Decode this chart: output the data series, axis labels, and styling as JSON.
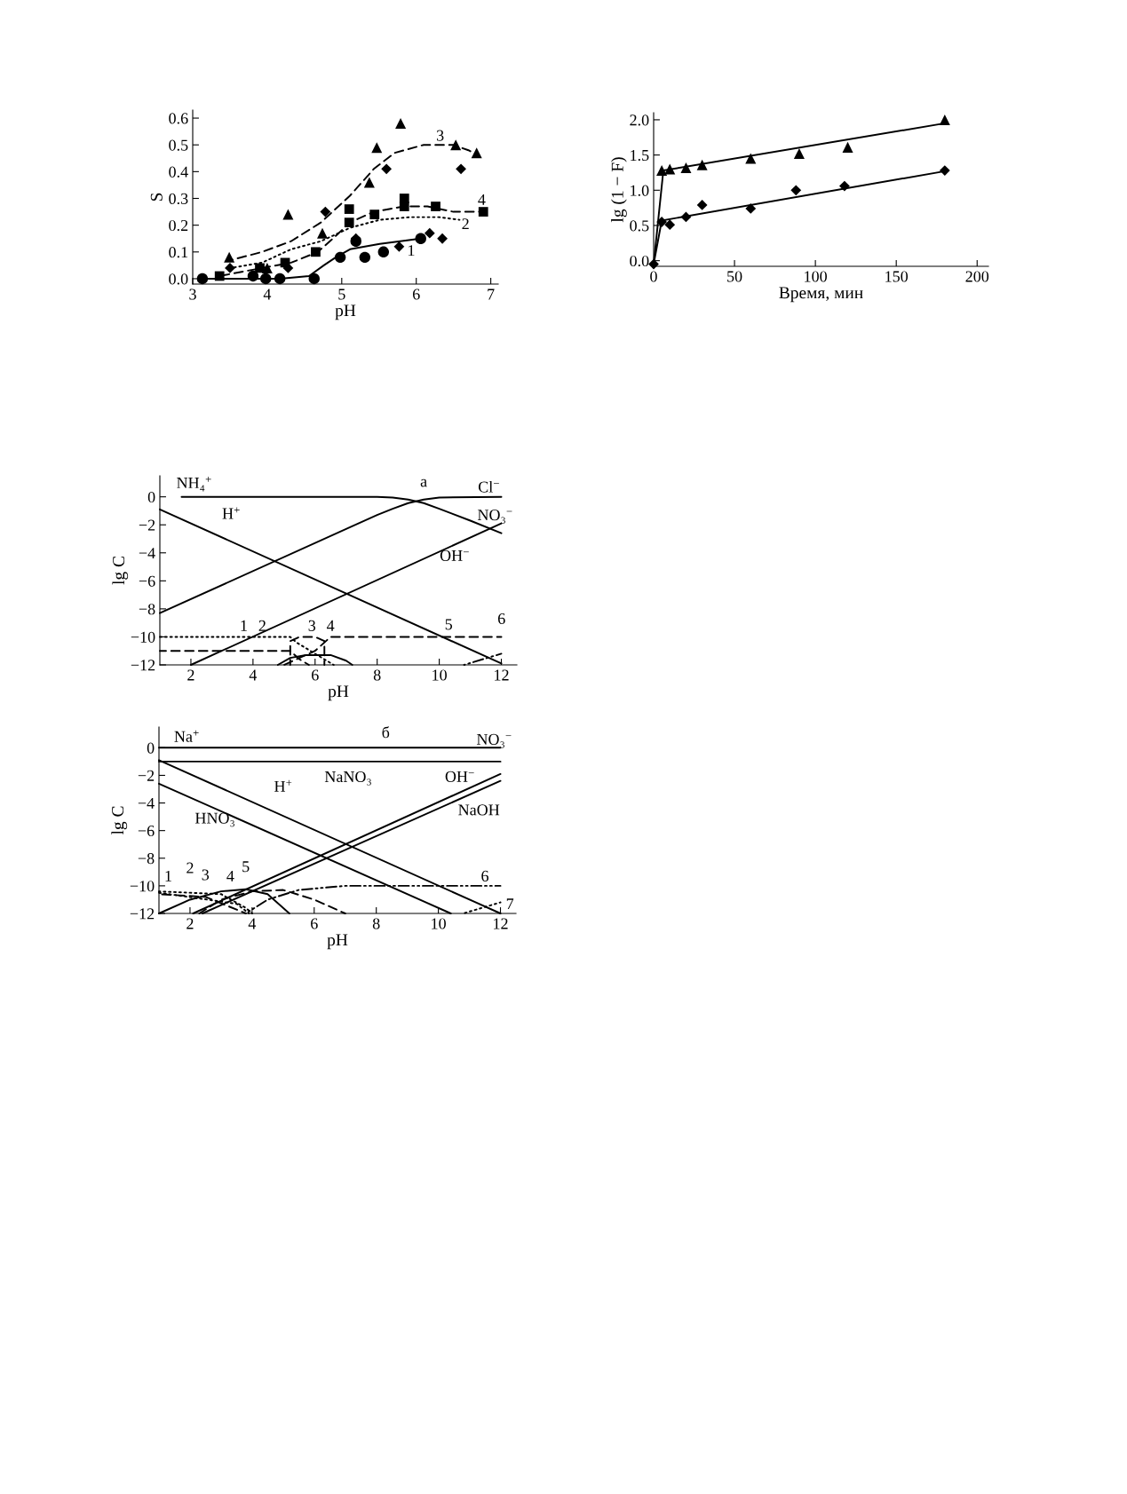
{
  "chart_data": [
    {
      "type": "scatter",
      "xlabel": "pH",
      "ylabel": "S",
      "xlim": [
        3,
        7.1
      ],
      "ylim": [
        -0.02,
        0.63
      ],
      "xticks": [
        3,
        4,
        5,
        6,
        7
      ],
      "yticks": [
        {
          "value": 0,
          "label": "0.0"
        },
        0.1,
        0.2,
        0.3,
        0.4,
        0.5,
        0.6
      ],
      "series": [
        {
          "type": "scatter",
          "marker": "circle",
          "color": "#000000",
          "x": [
            3.13,
            3.81,
            3.98,
            4.17,
            4.63,
            4.98,
            5.19,
            5.31,
            5.56,
            6.06
          ],
          "values": [
            0.0,
            0.01,
            0.0,
            0.0,
            0.0,
            0.08,
            0.14,
            0.08,
            0.1,
            0.15
          ]
        },
        {
          "type": "scatter",
          "marker": "diamond",
          "color": "#000000",
          "x": [
            3.5,
            4.28,
            4.78,
            5.19,
            5.6,
            5.77,
            6.18,
            6.35,
            6.6
          ],
          "values": [
            0.04,
            0.04,
            0.25,
            0.15,
            0.41,
            0.12,
            0.17,
            0.15,
            0.41
          ]
        },
        {
          "type": "scatter",
          "marker": "triangle",
          "color": "#000000",
          "x": [
            3.49,
            4.0,
            4.28,
            4.74,
            5.37,
            5.47,
            5.79,
            6.53,
            6.81
          ],
          "values": [
            0.08,
            0.04,
            0.24,
            0.17,
            0.36,
            0.49,
            0.58,
            0.5,
            0.47
          ]
        },
        {
          "type": "scatter",
          "marker": "square",
          "color": "#000000",
          "x": [
            3.36,
            3.9,
            4.24,
            4.65,
            5.1,
            5.1,
            5.44,
            5.84,
            5.84,
            6.26,
            6.9
          ],
          "values": [
            0.01,
            0.04,
            0.06,
            0.1,
            0.26,
            0.21,
            0.24,
            0.3,
            0.27,
            0.27,
            0.25
          ]
        },
        {
          "type": "line",
          "line_style": "solid",
          "color": "#000000",
          "x": [
            3.13,
            4.17,
            4.56,
            4.76,
            4.92,
            5.11,
            5.51,
            6.06
          ],
          "values": [
            0.0,
            0.0,
            0.01,
            0.05,
            0.08,
            0.11,
            0.13,
            0.15
          ]
        },
        {
          "type": "line",
          "line_style": "dotted",
          "color": "#000000",
          "x": [
            3.51,
            3.93,
            4.32,
            4.72,
            5.11,
            5.51,
            5.91,
            6.31,
            6.58
          ],
          "values": [
            0.04,
            0.06,
            0.11,
            0.14,
            0.19,
            0.22,
            0.23,
            0.23,
            0.22
          ]
        },
        {
          "type": "line",
          "line_style": "dashed",
          "color": "#000000",
          "x": [
            3.52,
            3.93,
            4.32,
            4.72,
            5.11,
            5.43,
            5.71,
            6.1,
            6.5,
            6.7,
            6.84
          ],
          "values": [
            0.07,
            0.1,
            0.14,
            0.21,
            0.31,
            0.41,
            0.47,
            0.5,
            0.5,
            0.48,
            0.46
          ]
        },
        {
          "type": "line",
          "line_style": "dashed",
          "color": "#000000",
          "x": [
            3.36,
            3.93,
            4.32,
            4.68,
            4.92,
            5.11,
            5.43,
            5.83,
            6.15,
            6.5,
            6.9
          ],
          "values": [
            0.01,
            0.04,
            0.06,
            0.1,
            0.16,
            0.21,
            0.25,
            0.27,
            0.27,
            0.25,
            0.25
          ]
        }
      ],
      "annotations": [
        "3",
        "4",
        "2",
        "1"
      ]
    },
    {
      "type": "scatter",
      "xlabel": "Время, мин",
      "ylabel": "lg (1 − F)",
      "xlim": [
        0,
        207
      ],
      "ylim": [
        -0.08,
        2.1
      ],
      "xticks": [
        0,
        50,
        100,
        150,
        200
      ],
      "yticks": [
        {
          "value": 0,
          "label": "0.0"
        },
        0.5,
        {
          "value": 1,
          "label": "1.0"
        },
        1.5,
        {
          "value": 2,
          "label": "2.0"
        }
      ],
      "series": [
        {
          "type": "scatter",
          "marker": "triangle",
          "color": "#000000",
          "x": [
            5,
            10,
            20,
            30,
            60,
            90,
            120,
            180
          ],
          "values": [
            1.28,
            1.3,
            1.32,
            1.36,
            1.45,
            1.52,
            1.61,
            2.0
          ]
        },
        {
          "type": "scatter",
          "marker": "diamond",
          "color": "#000000",
          "x": [
            0,
            5,
            10,
            20,
            30,
            60,
            88,
            118,
            180
          ],
          "values": [
            -0.05,
            0.55,
            0.51,
            0.62,
            0.79,
            0.74,
            1.0,
            1.06,
            1.28
          ]
        },
        {
          "type": "line",
          "line_style": "solid",
          "color": "#000000",
          "x": [
            0,
            6,
            180
          ],
          "values": [
            -0.05,
            1.28,
            1.95
          ]
        },
        {
          "type": "line",
          "line_style": "solid",
          "color": "#000000",
          "x": [
            0,
            5,
            180
          ],
          "values": [
            -0.05,
            0.57,
            1.27
          ]
        }
      ]
    },
    {
      "type": "line",
      "xlabel": "pH",
      "ylabel": "lg C",
      "xlim": [
        1,
        12.5
      ],
      "ylim": [
        -12,
        1.5
      ],
      "xticks": [
        2,
        4,
        6,
        8,
        10,
        12
      ],
      "yticks": [
        {
          "value": -12,
          "label": "−12"
        },
        {
          "value": -10,
          "label": "−10"
        },
        {
          "value": -8,
          "label": "−8"
        },
        {
          "value": -6,
          "label": "−6"
        },
        {
          "value": -4,
          "label": "−4"
        },
        {
          "value": -2,
          "label": "−2"
        },
        0
      ],
      "series": [
        {
          "line_style": "solid",
          "color": "#000000",
          "x": [
            1.7,
            8,
            8.5,
            9,
            9.5,
            10,
            11,
            12
          ],
          "values": [
            0,
            0,
            -0.05,
            -0.2,
            -0.45,
            -0.85,
            -1.7,
            -2.6
          ]
        },
        {
          "line_style": "solid",
          "color": "#000000",
          "x": [
            1,
            7,
            8,
            8.5,
            9,
            9.5,
            10,
            12
          ],
          "values": [
            -8.3,
            -2.3,
            -1.3,
            -0.85,
            -0.45,
            -0.2,
            -0.05,
            0
          ]
        },
        {
          "line_style": "solid",
          "color": "#000000",
          "x": [
            1,
            12
          ],
          "values": [
            -0.9,
            -11.9
          ]
        },
        {
          "line_style": "solid",
          "color": "#000000",
          "x": [
            2,
            12
          ],
          "values": [
            -12,
            -1.9
          ]
        },
        {
          "line_style": "dashed",
          "color": "#000000",
          "x": [
            1,
            5.2,
            5.5,
            5.8
          ],
          "values": [
            -11,
            -11,
            -11.6,
            -12
          ]
        },
        {
          "line_style": "dotted",
          "color": "#000000",
          "x": [
            1,
            5.2,
            5.4,
            6.0,
            6.6
          ],
          "values": [
            -10,
            -10,
            -10.4,
            -11.2,
            -12
          ]
        },
        {
          "line_style": "dashed",
          "color": "#000000",
          "x": [
            5.2,
            5.2,
            5.5,
            6,
            6.3,
            6.3
          ],
          "values": [
            -12,
            -10.3,
            -10,
            -10,
            -10.3,
            -12
          ]
        },
        {
          "line_style": "solid",
          "color": "#000000",
          "x": [
            4.8,
            5.2,
            5.7,
            6.5,
            7,
            7.2
          ],
          "values": [
            -12,
            -11.5,
            -11.3,
            -11.3,
            -11.7,
            -12
          ]
        },
        {
          "line_style": "dashed",
          "color": "#000000",
          "x": [
            5,
            6,
            6.5,
            12
          ],
          "values": [
            -12,
            -11,
            -10,
            -10
          ]
        },
        {
          "line_style": "dashdot",
          "color": "#000000",
          "x": [
            10.8,
            12
          ],
          "values": [
            -12,
            -11.2
          ]
        }
      ],
      "annotations": [
        "NH₄$^{+}$",
        "а",
        "Cl$^{−}$",
        "NO₃$^{−}$",
        "H$^{+}$",
        "OH$^{−}$",
        "1",
        "2",
        "3",
        "4",
        "5",
        "6"
      ]
    },
    {
      "type": "line",
      "xlabel": "pH",
      "ylabel": "lg C",
      "xlim": [
        1,
        12.5
      ],
      "ylim": [
        -12,
        1.5
      ],
      "xticks": [
        2,
        4,
        6,
        8,
        10,
        12
      ],
      "yticks": [
        {
          "value": -12,
          "label": "−12"
        },
        {
          "value": -10,
          "label": "−10"
        },
        {
          "value": -8,
          "label": "−8"
        },
        {
          "value": -6,
          "label": "−6"
        },
        {
          "value": -4,
          "label": "−4"
        },
        {
          "value": -2,
          "label": "−2"
        },
        0
      ],
      "series": [
        {
          "line_style": "solid",
          "color": "#000000",
          "x": [
            1,
            12
          ],
          "values": [
            0,
            0
          ]
        },
        {
          "line_style": "solid",
          "color": "#000000",
          "x": [
            1,
            12
          ],
          "values": [
            -1,
            -1
          ]
        },
        {
          "line_style": "solid",
          "color": "#000000",
          "x": [
            1,
            12
          ],
          "values": [
            -0.9,
            -12
          ]
        },
        {
          "line_style": "solid",
          "color": "#000000",
          "x": [
            1,
            10.4
          ],
          "values": [
            -2.6,
            -12
          ]
        },
        {
          "line_style": "solid",
          "color": "#000000",
          "x": [
            2.1,
            12
          ],
          "values": [
            -12,
            -1.9
          ]
        },
        {
          "line_style": "solid",
          "color": "#000000",
          "x": [
            2.4,
            12
          ],
          "values": [
            -12,
            -2.4
          ]
        },
        {
          "line_style": "dotted",
          "color": "#000000",
          "x": [
            1,
            3.0,
            3.8,
            4
          ],
          "values": [
            -10.4,
            -10.6,
            -11.6,
            -12
          ]
        },
        {
          "line_style": "dashed",
          "color": "#000000",
          "x": [
            1,
            2.5,
            3.8
          ],
          "values": [
            -10.6,
            -10.8,
            -12
          ]
        },
        {
          "line_style": "dotted",
          "color": "#000000",
          "x": [
            1,
            3.5,
            3.9
          ],
          "values": [
            -10.5,
            -11.3,
            -12
          ]
        },
        {
          "line_style": "solid",
          "color": "#000000",
          "x": [
            1,
            2,
            3,
            3.8,
            4.5,
            5.2
          ],
          "values": [
            -12,
            -11,
            -10.4,
            -10.25,
            -10.6,
            -12
          ]
        },
        {
          "line_style": "dashed",
          "color": "#000000",
          "x": [
            2.3,
            3,
            4,
            5,
            6,
            7
          ],
          "values": [
            -12,
            -11,
            -10.4,
            -10.3,
            -11,
            -12
          ]
        },
        {
          "line_style": "dashdot",
          "color": "#000000",
          "x": [
            3.8,
            4.5,
            5.5,
            7,
            12
          ],
          "values": [
            -12,
            -11,
            -10.3,
            -10,
            -10
          ]
        },
        {
          "line_style": "dotted",
          "color": "#000000",
          "x": [
            10.8,
            12
          ],
          "values": [
            -12,
            -11.2
          ]
        }
      ],
      "annotations": [
        "Na$^{+}$",
        "б",
        "NO₃$^{−}$",
        "NaNO₃",
        "H$^{+}$",
        "OH$^{−}$",
        "HNO₃",
        "NaOH",
        "1",
        "2",
        "3",
        "4",
        "5",
        "6",
        "7"
      ]
    }
  ]
}
